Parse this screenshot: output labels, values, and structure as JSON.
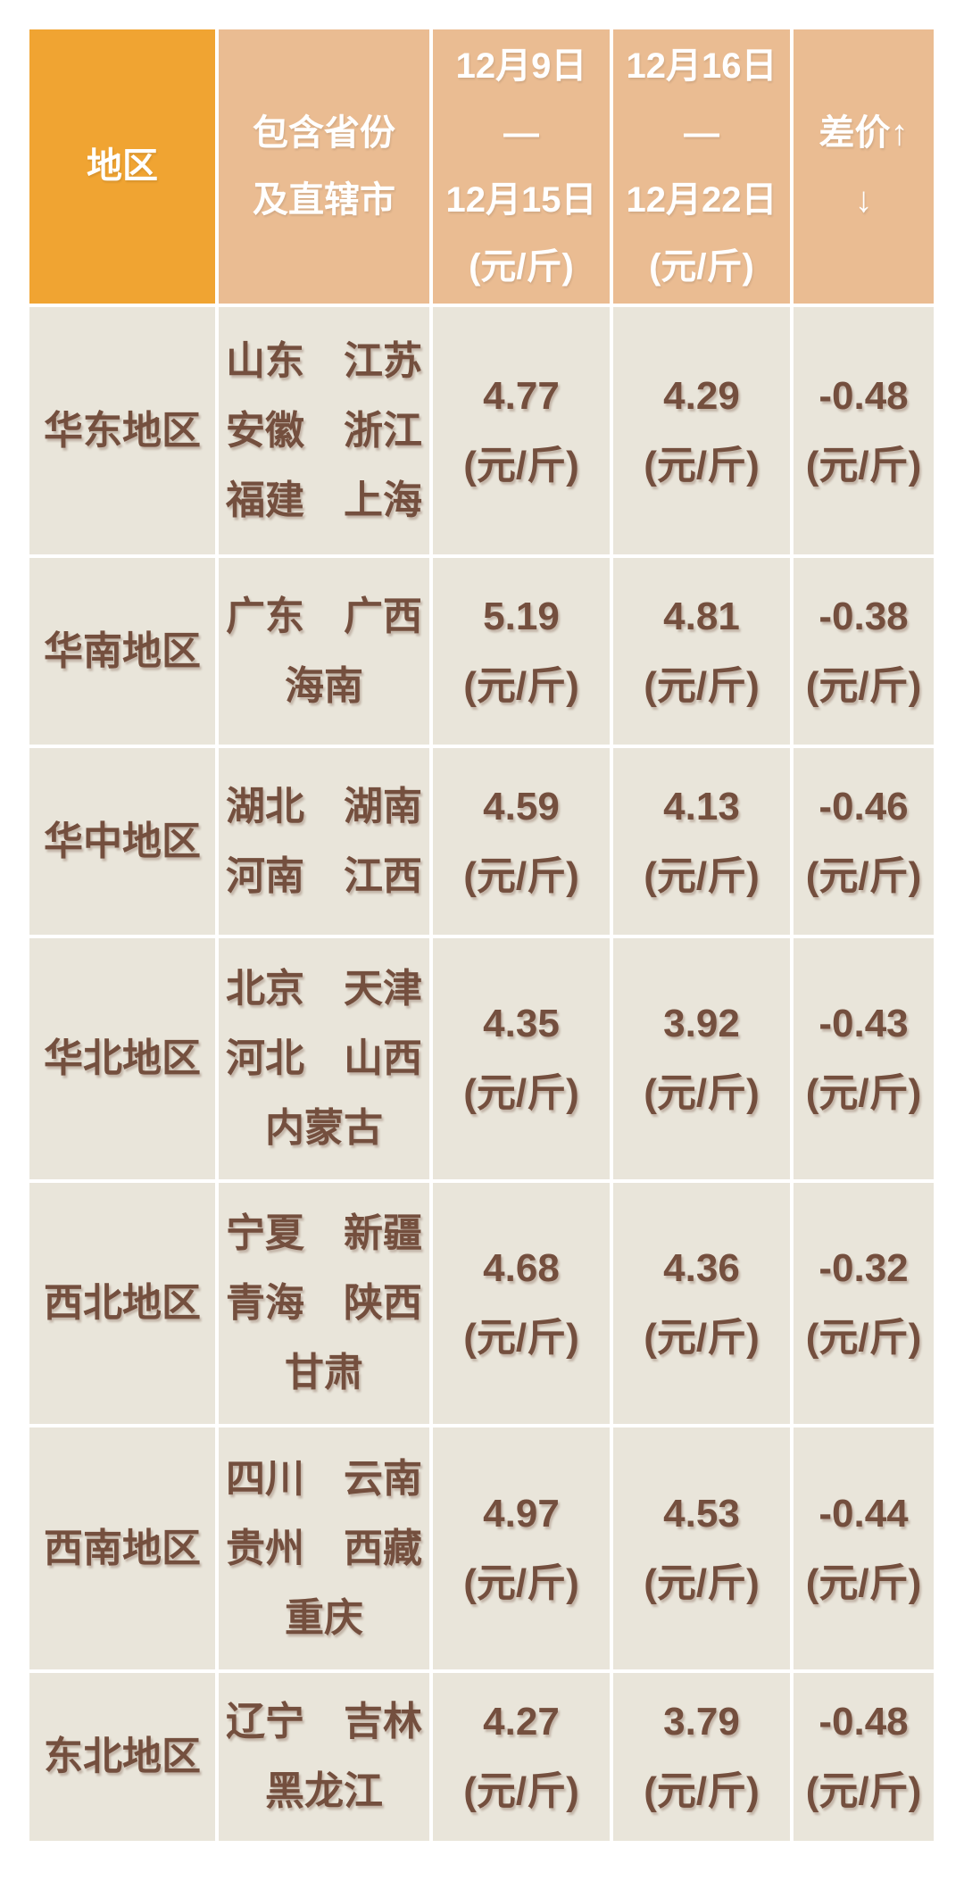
{
  "table": {
    "colors": {
      "header_primary_bg": "#F0A432",
      "header_secondary_bg": "#EABC92",
      "header_text": "#FFFFFF",
      "cell_bg": "#E9E5DA",
      "cell_text": "#744F3E",
      "grid_line": "#FFFFFF"
    },
    "header": {
      "region": "地区",
      "provinces": [
        "包含省份",
        "及直辖市"
      ],
      "week1": [
        "12月9日",
        "—",
        "12月15日",
        "(元/斤)"
      ],
      "week2": [
        "12月16日",
        "—",
        "12月22日",
        "(元/斤)"
      ],
      "diff": [
        "差价↑",
        "↓"
      ]
    },
    "unit": "(元/斤)",
    "rows": [
      {
        "region": "华东地区",
        "provinces": [
          "山东　江苏",
          "安徽　浙江",
          "福建　上海"
        ],
        "week1": "4.77",
        "week2": "4.29",
        "diff": "-0.48"
      },
      {
        "region": "华南地区",
        "provinces": [
          "广东　广西",
          "海南"
        ],
        "week1": "5.19",
        "week2": "4.81",
        "diff": "-0.38"
      },
      {
        "region": "华中地区",
        "provinces": [
          "湖北　湖南",
          "河南　江西"
        ],
        "week1": "4.59",
        "week2": "4.13",
        "diff": "-0.46"
      },
      {
        "region": "华北地区",
        "provinces": [
          "北京　天津",
          "河北　山西",
          "内蒙古"
        ],
        "week1": "4.35",
        "week2": "3.92",
        "diff": "-0.43"
      },
      {
        "region": "西北地区",
        "provinces": [
          "宁夏　新疆",
          "青海　陕西",
          "甘肃"
        ],
        "week1": "4.68",
        "week2": "4.36",
        "diff": "-0.32"
      },
      {
        "region": "西南地区",
        "provinces": [
          "四川　云南",
          "贵州　西藏",
          "重庆"
        ],
        "week1": "4.97",
        "week2": "4.53",
        "diff": "-0.44"
      },
      {
        "region": "东北地区",
        "provinces": [
          "辽宁　吉林",
          "黑龙江"
        ],
        "week1": "4.27",
        "week2": "3.79",
        "diff": "-0.48"
      }
    ]
  },
  "chart_data": {
    "type": "table",
    "title": "",
    "unit": "元/斤",
    "columns": [
      "地区",
      "包含省份及直辖市",
      "12月9日—12月15日(元/斤)",
      "12月16日—12月22日(元/斤)",
      "差价↑↓"
    ],
    "rows": [
      [
        "华东地区",
        "山东 江苏 安徽 浙江 福建 上海",
        4.77,
        4.29,
        -0.48
      ],
      [
        "华南地区",
        "广东 广西 海南",
        5.19,
        4.81,
        -0.38
      ],
      [
        "华中地区",
        "湖北 湖南 河南 江西",
        4.59,
        4.13,
        -0.46
      ],
      [
        "华北地区",
        "北京 天津 河北 山西 内蒙古",
        4.35,
        3.92,
        -0.43
      ],
      [
        "西北地区",
        "宁夏 新疆 青海 陕西 甘肃",
        4.68,
        4.36,
        -0.32
      ],
      [
        "西南地区",
        "四川 云南 贵州 西藏 重庆",
        4.97,
        4.53,
        -0.44
      ],
      [
        "东北地区",
        "辽宁 吉林 黑龙江",
        4.27,
        3.79,
        -0.48
      ]
    ]
  }
}
